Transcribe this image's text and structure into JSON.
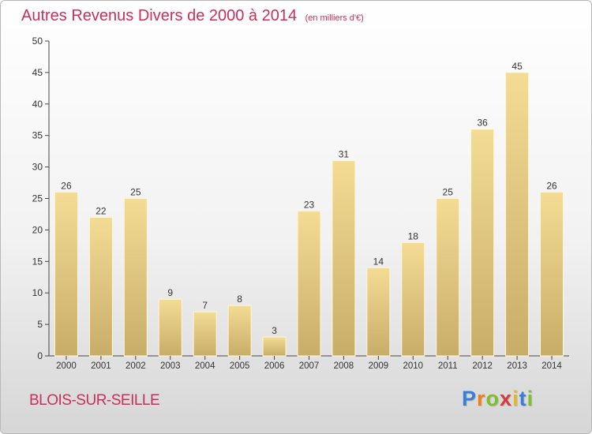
{
  "title": "Autres Revenus Divers de 2000 à 2014",
  "unit": "(en milliers d'€)",
  "city": "BLOIS-SUR-SEILLE",
  "logo": {
    "text": "Proxiti",
    "letter_colors": [
      "#3b7fd4",
      "#ef7d1a",
      "#7dbf2c",
      "#d83a3a",
      "#e2b82a",
      "#3b7fd4",
      "#7dbf2c"
    ]
  },
  "colors": {
    "title": "#c8305a",
    "bar_top": "#f4dc95",
    "bar_bottom": "#c8ad68",
    "axis": "#444444"
  },
  "chart_data": {
    "type": "bar",
    "categories": [
      "2000",
      "2001",
      "2002",
      "2003",
      "2004",
      "2005",
      "2006",
      "2007",
      "2008",
      "2009",
      "2010",
      "2011",
      "2012",
      "2013",
      "2014"
    ],
    "values": [
      26,
      22,
      25,
      9,
      7,
      8,
      3,
      23,
      31,
      14,
      18,
      25,
      36,
      45,
      26
    ],
    "ylim": [
      0,
      50
    ],
    "yticks": [
      0,
      5,
      10,
      15,
      20,
      25,
      30,
      35,
      40,
      45,
      50
    ],
    "grid": false,
    "data_labels": true
  }
}
